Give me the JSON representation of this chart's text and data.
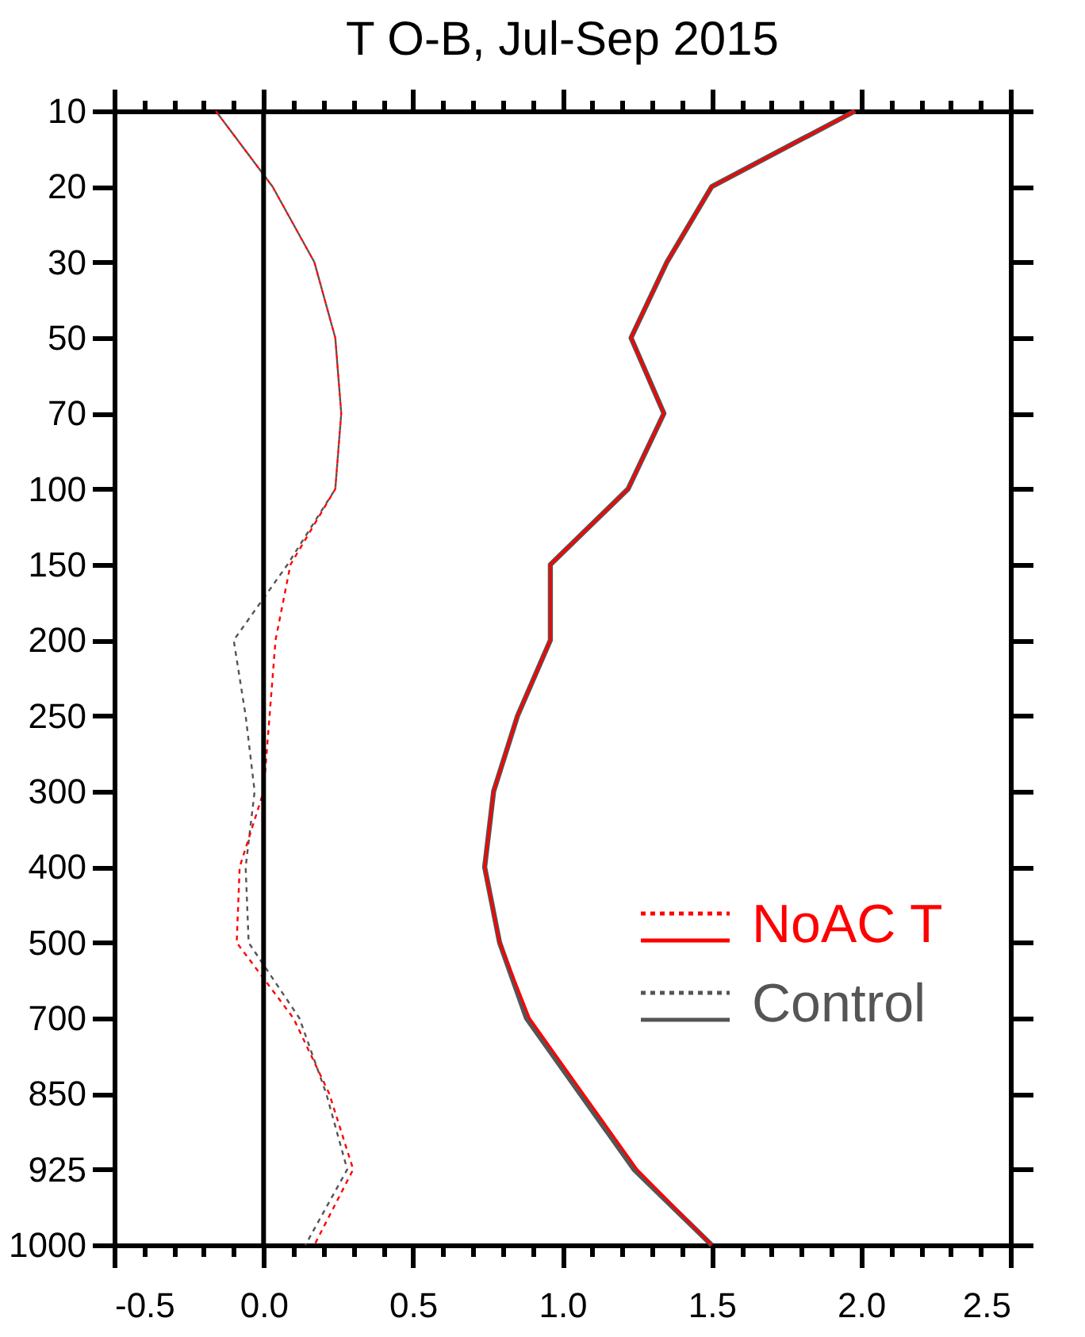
{
  "chart_data": {
    "type": "line",
    "title": "T O-B, Jul-Sep 2015",
    "orientation": "horizontal",
    "categories": [
      "10",
      "20",
      "30",
      "50",
      "70",
      "100",
      "150",
      "200",
      "250",
      "300",
      "400",
      "500",
      "700",
      "850",
      "925",
      "1000"
    ],
    "series": [
      {
        "color": "#ff0000",
        "line_style": "dotted",
        "values": [
          -0.16,
          0.03,
          0.17,
          0.24,
          0.26,
          0.24,
          0.09,
          0.04,
          0.02,
          0.0,
          -0.08,
          -0.09,
          0.1,
          0.22,
          0.3,
          0.17
        ]
      },
      {
        "name": "NoAC T",
        "color": "#ff0000",
        "line_style": "solid",
        "values": [
          1.98,
          1.5,
          1.35,
          1.23,
          1.34,
          1.22,
          0.96,
          0.96,
          0.85,
          0.77,
          0.74,
          0.79,
          0.89,
          1.07,
          1.25,
          1.5
        ]
      },
      {
        "color": "#555555",
        "line_style": "dotted",
        "values": [
          -0.16,
          0.03,
          0.17,
          0.24,
          0.26,
          0.24,
          0.08,
          -0.1,
          -0.06,
          -0.03,
          -0.06,
          -0.05,
          0.12,
          0.21,
          0.28,
          0.14
        ]
      },
      {
        "name": "Control",
        "color": "#555555",
        "line_style": "solid",
        "values": [
          1.98,
          1.5,
          1.35,
          1.23,
          1.34,
          1.22,
          0.96,
          0.96,
          0.85,
          0.77,
          0.74,
          0.79,
          0.88,
          1.06,
          1.24,
          1.5
        ]
      }
    ],
    "xlim": [
      -0.5,
      2.5
    ],
    "xticks": [
      -0.5,
      {
        "value": -0.4,
        "label": null
      },
      {
        "value": -0.3,
        "label": null
      },
      {
        "value": -0.2,
        "label": null
      },
      {
        "value": -0.1,
        "label": null
      },
      {
        "value": 0,
        "label": "0.0"
      },
      {
        "value": 0.1,
        "label": null
      },
      {
        "value": 0.2,
        "label": null
      },
      {
        "value": 0.3,
        "label": null
      },
      {
        "value": 0.4,
        "label": null
      },
      0.5,
      {
        "value": 0.6,
        "label": null
      },
      {
        "value": 0.7,
        "label": null
      },
      {
        "value": 0.8,
        "label": null
      },
      {
        "value": 0.9,
        "label": null
      },
      {
        "value": 1,
        "label": "1.0"
      },
      {
        "value": 1.1,
        "label": null
      },
      {
        "value": 1.2,
        "label": null
      },
      {
        "value": 1.3,
        "label": null
      },
      {
        "value": 1.4,
        "label": null
      },
      1.5,
      {
        "value": 1.6,
        "label": null
      },
      {
        "value": 1.7,
        "label": null
      },
      {
        "value": 1.8,
        "label": null
      },
      {
        "value": 1.9,
        "label": null
      },
      {
        "value": 2,
        "label": "2.0"
      },
      {
        "value": 2.1,
        "label": null
      },
      {
        "value": 2.2,
        "label": null
      },
      {
        "value": 2.3,
        "label": null
      },
      {
        "value": 2.4,
        "label": null
      },
      2.5
    ],
    "ref_lines": [
      {
        "axis": "x",
        "value": 0,
        "color": "#000000"
      }
    ],
    "legend": "right",
    "grid": false
  }
}
